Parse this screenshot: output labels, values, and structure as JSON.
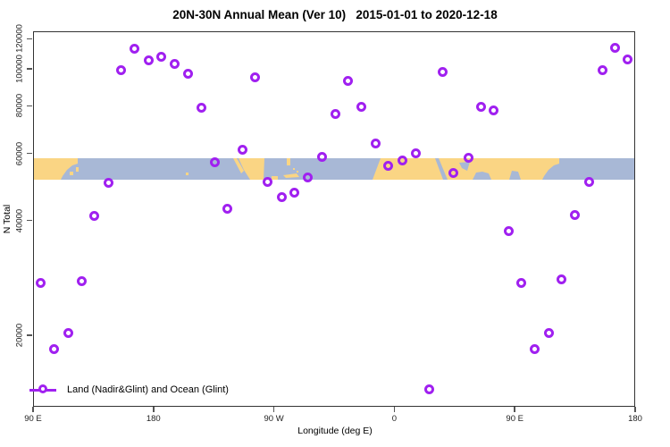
{
  "title": "20N-30N Annual Mean (Ver 10)   2015-01-01 to 2020-12-18",
  "legend": {
    "label": "Land (Nadir&Glint) and Ocean (Glint)"
  },
  "colors": {
    "point": "#A020F0",
    "land": "#FAD584",
    "ocean": "#A8B8D6",
    "frame": "#333333"
  },
  "chart_data": {
    "type": "scatter",
    "title": "20N-30N Annual Mean (Ver 10)   2015-01-01 to 2020-12-18",
    "xlabel": "Longitude (deg E)",
    "ylabel": "N Total",
    "legend_entries": [
      "Land (Nadir&Glint) and Ocean (Glint)"
    ],
    "x_axis": {
      "start_label": "90 E",
      "span_deg": 450,
      "ticks": [
        {
          "deg": 0,
          "label": "90 E"
        },
        {
          "deg": 90,
          "label": "180"
        },
        {
          "deg": 180,
          "label": "90 W"
        },
        {
          "deg": 270,
          "label": "0"
        },
        {
          "deg": 360,
          "label": "90 E"
        },
        {
          "deg": 450,
          "label": "180"
        }
      ]
    },
    "y_axis": {
      "scale": "log",
      "range": [
        12990,
        125500
      ],
      "ticks": [
        20000,
        40000,
        60000,
        80000,
        100000,
        120000
      ]
    },
    "map_band": {
      "description": "World coastline strip for latitude band 20N-30N drawn across plot",
      "lat_band": "20N-30N",
      "n_value_span": [
        51000,
        58300
      ]
    },
    "points": [
      {
        "lon": "166E",
        "deg": 76.4,
        "n": 112900
      },
      {
        "lon": "177E",
        "deg": 86.7,
        "n": 105200
      },
      {
        "lon": "174W",
        "deg": 96.3,
        "n": 107500
      },
      {
        "lon": "164W",
        "deg": 106.1,
        "n": 102900
      },
      {
        "lon": "156E",
        "deg": 66.2,
        "n": 98800
      },
      {
        "lon": "154W",
        "deg": 116.3,
        "n": 97000
      },
      {
        "lon": "104W",
        "deg": 166.0,
        "n": 94700
      },
      {
        "lon": "144W",
        "deg": 126.4,
        "n": 78900
      },
      {
        "lon": "44W",
        "deg": 226.5,
        "n": 76000
      },
      {
        "lon": "113W",
        "deg": 157.1,
        "n": 61200
      },
      {
        "lon": "134W",
        "deg": 136.2,
        "n": 56800
      },
      {
        "lon": "54W",
        "deg": 216.2,
        "n": 58600
      },
      {
        "lon": "64W",
        "deg": 205.7,
        "n": 51700
      },
      {
        "lon": "94W",
        "deg": 175.6,
        "n": 50500
      },
      {
        "lon": "147E",
        "deg": 57.0,
        "n": 50200
      },
      {
        "lon": "74W",
        "deg": 195.9,
        "n": 47200
      },
      {
        "lon": "84W",
        "deg": 186.5,
        "n": 45900
      },
      {
        "lon": "125W",
        "deg": 145.3,
        "n": 42900
      },
      {
        "lon": "136E",
        "deg": 46.1,
        "n": 41000
      },
      {
        "lon": "166E",
        "deg": 435.5,
        "n": 113300
      },
      {
        "lon": "175E",
        "deg": 444.9,
        "n": 105400
      },
      {
        "lon": "156E",
        "deg": 425.7,
        "n": 98800
      },
      {
        "lon": "36E",
        "deg": 306.2,
        "n": 97900
      },
      {
        "lon": "35W",
        "deg": 235.4,
        "n": 92800
      },
      {
        "lon": "24W",
        "deg": 245.6,
        "n": 79300
      },
      {
        "lon": "65E",
        "deg": 335.2,
        "n": 79200
      },
      {
        "lon": "75E",
        "deg": 344.8,
        "n": 77500
      },
      {
        "lon": "14W",
        "deg": 256.1,
        "n": 63600
      },
      {
        "lon": "16E",
        "deg": 286.4,
        "n": 59800
      },
      {
        "lon": "6E",
        "deg": 276.1,
        "n": 57400
      },
      {
        "lon": "5W",
        "deg": 265.5,
        "n": 55600
      },
      {
        "lon": "56E",
        "deg": 326.1,
        "n": 58400
      },
      {
        "lon": "45E",
        "deg": 314.7,
        "n": 53300
      },
      {
        "lon": "146E",
        "deg": 415.7,
        "n": 50300
      },
      {
        "lon": "136E",
        "deg": 405.5,
        "n": 41200
      },
      {
        "lon": "96E",
        "deg": 5.8,
        "n": 27300
      },
      {
        "lon": "127E",
        "deg": 36.6,
        "n": 27700
      },
      {
        "lon": "117E",
        "deg": 26.5,
        "n": 20200
      },
      {
        "lon": "106E",
        "deg": 16.0,
        "n": 18400
      },
      {
        "lon": "86E",
        "deg": 355.7,
        "n": 37400
      },
      {
        "lon": "95E",
        "deg": 365.3,
        "n": 27300
      },
      {
        "lon": "125E",
        "deg": 395.4,
        "n": 27900
      },
      {
        "lon": "116E",
        "deg": 386.0,
        "n": 20200
      },
      {
        "lon": "105E",
        "deg": 375.1,
        "n": 18400
      },
      {
        "lon": "26E",
        "deg": 296.4,
        "n": 14400
      }
    ]
  }
}
